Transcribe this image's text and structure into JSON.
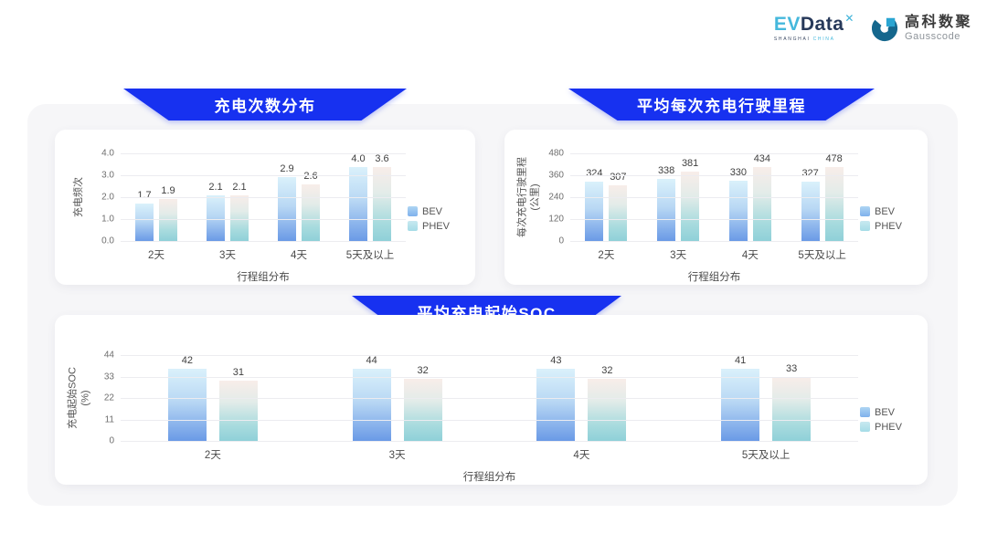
{
  "brand": {
    "ev": "EV",
    "data": "Data",
    "x": "✕",
    "subtitle_left": "SHANGHAI",
    "subtitle_right": "CHINA",
    "gauss_cn": "高科数聚",
    "gauss_en": "Gausscode"
  },
  "colors": {
    "banner_blue": "#1731f0",
    "bev_gradient_top": "#daf1fb",
    "bev_gradient_bottom": "#6a9ae6",
    "phev_gradient_top": "#f8ede9",
    "phev_gradient_bottom": "#8fd0d8",
    "gridline": "#ececf0",
    "panel_bg": "#f6f6f8",
    "card_bg": "#ffffff"
  },
  "chart_data": [
    {
      "type": "bar",
      "title": "充电次数分布",
      "ylabel": "充电频次",
      "ylabel_unit": "",
      "xlabel": "行程组分布",
      "categories": [
        "2天",
        "3天",
        "4天",
        "5天及以上"
      ],
      "yticks": [
        "4.0",
        "3.0",
        "2.0",
        "1.0",
        "0.0"
      ],
      "ymax": 4,
      "ylim": [
        0,
        4
      ],
      "grid": true,
      "legend_position": "right",
      "series": [
        {
          "name": "BEV",
          "values": [
            1.7,
            2.1,
            2.9,
            4.0
          ],
          "labels": [
            "1.7",
            "2.1",
            "2.9",
            "4.0"
          ]
        },
        {
          "name": "PHEV",
          "values": [
            1.9,
            2.1,
            2.6,
            3.6
          ],
          "labels": [
            "1.9",
            "2.1",
            "2.6",
            "3.6"
          ]
        }
      ]
    },
    {
      "type": "bar",
      "title": "平均每次充电行驶里程",
      "ylabel": "每次充电行驶里程",
      "ylabel_unit": "(公里)",
      "xlabel": "行程组分布",
      "categories": [
        "2天",
        "3天",
        "4天",
        "5天及以上"
      ],
      "yticks": [
        "480",
        "360",
        "240",
        "120",
        "0"
      ],
      "ymax": 480,
      "ylim": [
        0,
        480
      ],
      "grid": true,
      "legend_position": "right",
      "series": [
        {
          "name": "BEV",
          "values": [
            324,
            338,
            330,
            327
          ],
          "labels": [
            "324",
            "338",
            "330",
            "327"
          ]
        },
        {
          "name": "PHEV",
          "values": [
            307,
            381,
            434,
            478
          ],
          "labels": [
            "307",
            "381",
            "434",
            "478"
          ]
        }
      ]
    },
    {
      "type": "bar",
      "title": "平均充电起始SOC",
      "ylabel": "充电起始SOC",
      "ylabel_unit": "(%)",
      "xlabel": "行程组分布",
      "categories": [
        "2天",
        "3天",
        "4天",
        "5天及以上"
      ],
      "yticks": [
        "44",
        "33",
        "22",
        "11",
        "0"
      ],
      "ymax": 44,
      "ylim": [
        0,
        44
      ],
      "grid": true,
      "legend_position": "right",
      "series": [
        {
          "name": "BEV",
          "values": [
            42,
            44,
            43,
            41
          ],
          "labels": [
            "42",
            "44",
            "43",
            "41"
          ]
        },
        {
          "name": "PHEV",
          "values": [
            31,
            32,
            32,
            33
          ],
          "labels": [
            "31",
            "32",
            "32",
            "33"
          ]
        }
      ]
    }
  ]
}
